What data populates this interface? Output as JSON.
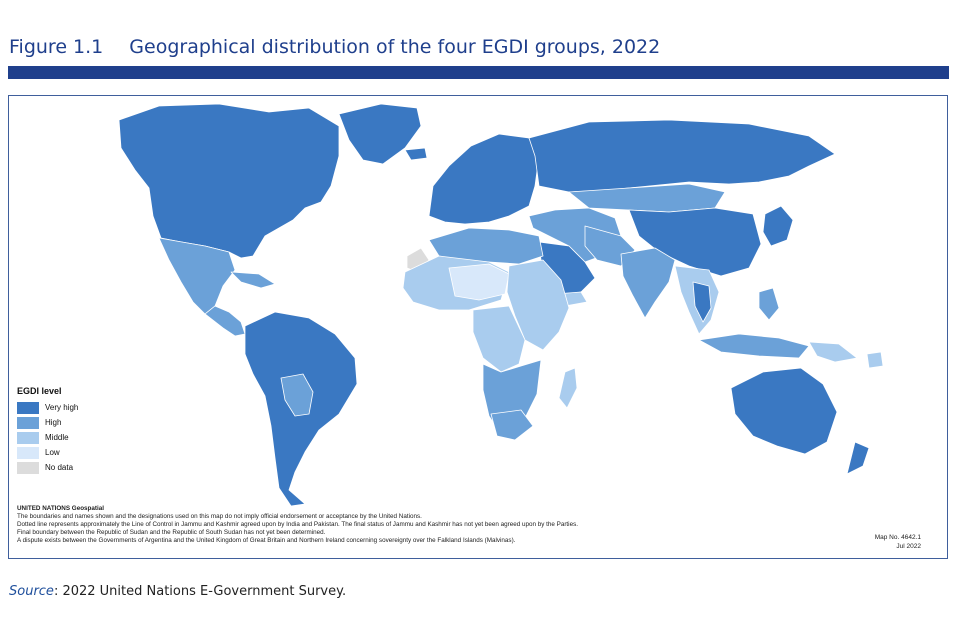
{
  "figure": {
    "number": "Figure 1.1",
    "title": "Geographical distribution of the four EGDI groups, 2022"
  },
  "legend": {
    "title": "EGDI level",
    "items": [
      {
        "label": "Very high",
        "color": "#3a78c2"
      },
      {
        "label": "High",
        "color": "#6ba1d8"
      },
      {
        "label": "Middle",
        "color": "#a9ccee"
      },
      {
        "label": "Low",
        "color": "#d8e8fa"
      },
      {
        "label": "No data",
        "color": "#dcdcdc"
      }
    ]
  },
  "map_colors": {
    "very_high": "#3a78c2",
    "high": "#6ba1d8",
    "middle": "#a9ccee",
    "low": "#d8e8fa",
    "no_data": "#dcdcdc",
    "border": "#ffffff"
  },
  "disclaimer": {
    "heading": "UNITED NATIONS Geospatial",
    "lines": [
      "The boundaries and names shown and the designations used on this map do not imply official endorsement or acceptance by the United Nations.",
      "Dotted line represents approximately the Line of Control in Jammu and Kashmir agreed upon by India and Pakistan. The final status of Jammu and Kashmir has not yet been agreed upon by the Parties.",
      "Final boundary between the Republic of Sudan and the Republic of South Sudan has not yet been determined.",
      "A dispute exists between the Governments of Argentina and the United Kingdom of Great Britain and Northern Ireland concerning sovereignty over the Falkland Islands (Malvinas)."
    ]
  },
  "map_number": {
    "number": "Map No. 4642.1",
    "date": "Jul 2022"
  },
  "source": {
    "label": "Source",
    "text": ": 2022 United Nations E-Government Survey."
  }
}
